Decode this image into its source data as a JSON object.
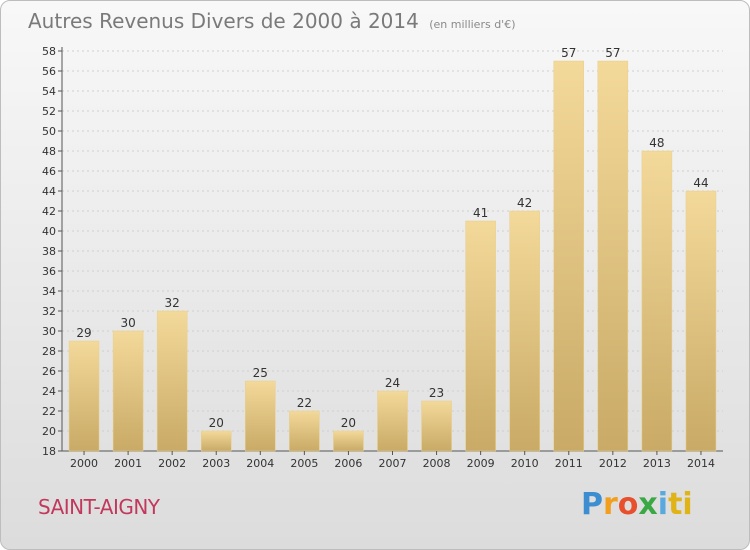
{
  "header": {
    "title": "Autres Revenus Divers de 2000 à 2014",
    "subtitle": "(en milliers d'€)"
  },
  "footer": {
    "commune": "SAINT-AIGNY",
    "logo_letters": [
      "P",
      "r",
      "o",
      "x",
      "i",
      "ti"
    ]
  },
  "colors": {
    "bar_light": "#f3d99a",
    "bar_dark": "#c9aa66",
    "axis": "#555555",
    "text": "#333333"
  },
  "chart_data": {
    "type": "bar",
    "categories": [
      "2000",
      "2001",
      "2002",
      "2003",
      "2004",
      "2005",
      "2006",
      "2007",
      "2008",
      "2009",
      "2010",
      "2011",
      "2012",
      "2013",
      "2014"
    ],
    "values": [
      29,
      30,
      32,
      20,
      25,
      22,
      20,
      24,
      23,
      41,
      42,
      57,
      57,
      48,
      44
    ],
    "ylim": [
      18,
      58
    ],
    "yticks": [
      18,
      20,
      22,
      24,
      26,
      28,
      30,
      32,
      34,
      36,
      38,
      40,
      42,
      44,
      46,
      48,
      50,
      52,
      54,
      56,
      58
    ],
    "grid": true,
    "legend": "none"
  }
}
